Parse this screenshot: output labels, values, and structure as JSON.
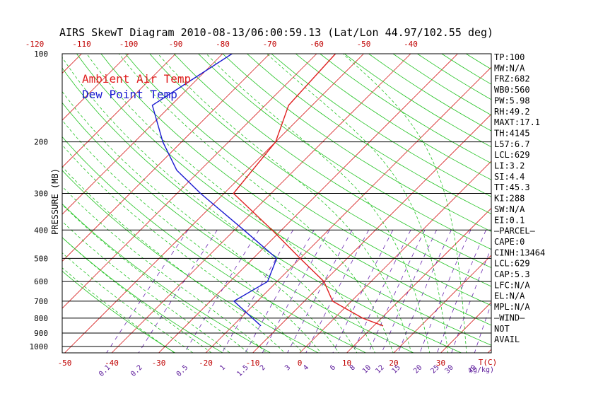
{
  "chart_data": {
    "type": "line",
    "title": "AIRS SkewT Diagram 2010-08-13/06:00:59.13 (Lat/Lon 44.97/102.55 deg)",
    "ylabel": "PRESSURE (MB)",
    "y_scale": "log",
    "ylim": [
      1050,
      100
    ],
    "pressure_ticks": [
      100,
      200,
      300,
      400,
      500,
      600,
      700,
      800,
      900,
      1000
    ],
    "bottom_temp_ticks": [
      -50,
      -40,
      -30,
      -20,
      -10,
      0,
      10,
      20,
      30
    ],
    "bottom_temp_unit": "T(C)",
    "top_temp_ticks": [
      -120,
      -110,
      -100,
      -90,
      -80,
      -70,
      -60,
      -50,
      -40
    ],
    "mixing_ratio_ticks": [
      "0.1",
      "0.2",
      "0.5",
      "1",
      "1.5",
      "2",
      "3",
      "4",
      "6",
      "8",
      "10",
      "12",
      "15",
      "20",
      "25",
      "30",
      "40"
    ],
    "mixing_ratio_unit": "(g/kg)",
    "series": [
      {
        "name": "Ambient Air Temp",
        "color": "#e02020",
        "points": [
          {
            "p": 100,
            "t": -56
          },
          {
            "p": 150,
            "t": -55
          },
          {
            "p": 200,
            "t": -50
          },
          {
            "p": 300,
            "t": -48
          },
          {
            "p": 400,
            "t": -32
          },
          {
            "p": 500,
            "t": -20
          },
          {
            "p": 600,
            "t": -10
          },
          {
            "p": 700,
            "t": -4
          },
          {
            "p": 800,
            "t": 6
          },
          {
            "p": 850,
            "t": 12
          }
        ]
      },
      {
        "name": "Dew Point Temp",
        "color": "#1a1ad0",
        "points": [
          {
            "p": 100,
            "t": -78
          },
          {
            "p": 150,
            "t": -84
          },
          {
            "p": 200,
            "t": -74
          },
          {
            "p": 250,
            "t": -65
          },
          {
            "p": 300,
            "t": -55
          },
          {
            "p": 400,
            "t": -38
          },
          {
            "p": 500,
            "t": -25
          },
          {
            "p": 600,
            "t": -22
          },
          {
            "p": 700,
            "t": -25
          },
          {
            "p": 850,
            "t": -14
          }
        ]
      }
    ],
    "grid": true,
    "legend_position": "top-left"
  },
  "indices": [
    "TP:100",
    "MW:N/A",
    "FRZ:682",
    "WB0:560",
    "PW:5.98",
    "RH:49.2",
    "MAXT:17.1",
    "TH:4145",
    "L57:6.7",
    "LCL:629",
    "LI:3.2",
    "SI:4.4",
    "TT:45.3",
    "KI:288",
    "SW:N/A",
    "EI:0.1",
    "—PARCEL—",
    "CAPE:0",
    "CINH:13464",
    "LCL:629",
    "CAP:5.3",
    "LFC:N/A",
    "EL:N/A",
    "MPL:N/A",
    "—WIND—",
    "NOT",
    "AVAIL"
  ],
  "colors": {
    "isotherm": "#d62020",
    "dry_adiabat": "#22c322",
    "moist_adiabat": "#22c322",
    "mixing_ratio": "#6a28b0",
    "temperature": "#e02020",
    "dewpoint": "#1a1ad0",
    "parcel": "#8b4513"
  }
}
